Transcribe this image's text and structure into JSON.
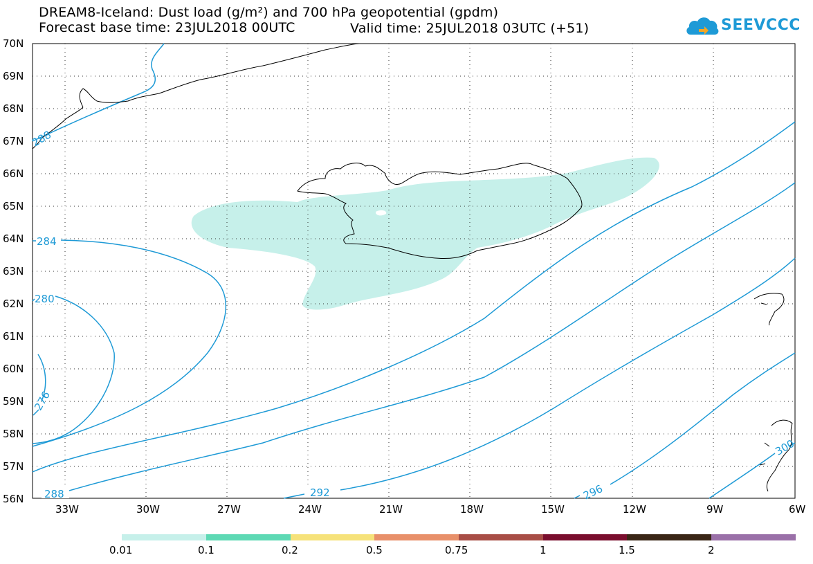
{
  "header": {
    "title_line1": "DREAM8-Iceland: Dust load (g/m²) and 700 hPa geopotential (gpdm)",
    "base_time": "Forecast base time: 23JUL2018 00UTC",
    "valid_time": "Valid time: 25JUL2018 03UTC (+51)"
  },
  "logo": {
    "text": "SEEVCCC",
    "icon": "cloud-logo-icon"
  },
  "map": {
    "lat_labels": [
      "70N",
      "69N",
      "68N",
      "67N",
      "66N",
      "65N",
      "64N",
      "63N",
      "62N",
      "61N",
      "60N",
      "59N",
      "58N",
      "57N",
      "56N"
    ],
    "lon_labels": [
      "33W",
      "30W",
      "27W",
      "24W",
      "21W",
      "18W",
      "15W",
      "12W",
      "9W",
      "6W"
    ],
    "contour_labels": [
      "284",
      "280",
      "276",
      "288",
      "292",
      "296",
      "288",
      "300"
    ],
    "colors": {
      "dust_fill": "#c6f0ea",
      "contour": "#1e9ad6",
      "coast": "#000000"
    }
  },
  "colorbar": {
    "labels": [
      "0.01",
      "0.1",
      "0.2",
      "0.5",
      "0.75",
      "1",
      "1.5",
      "2"
    ],
    "colors": [
      "#c6f0ea",
      "#5dd9b4",
      "#f6e27a",
      "#e8906a",
      "#a84e46",
      "#7a0e2e",
      "#3a2616",
      "#9a70a8"
    ]
  }
}
